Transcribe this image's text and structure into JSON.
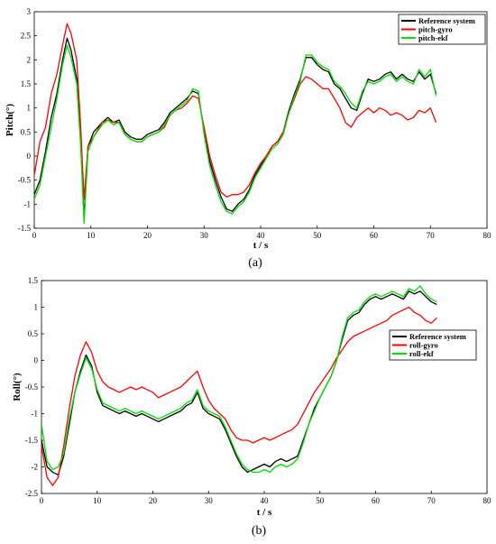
{
  "chart_data": [
    {
      "type": "line",
      "caption": "(a)",
      "xlabel": "t / s",
      "ylabel": "Pitch(°)",
      "xlim": [
        0,
        80
      ],
      "ylim": [
        -1.5,
        3
      ],
      "xticks": [
        0,
        10,
        20,
        30,
        40,
        50,
        60,
        70,
        80
      ],
      "yticks": [
        -1.5,
        -1,
        -0.5,
        0,
        0.5,
        1,
        1.5,
        2,
        2.5,
        3
      ],
      "grid": false,
      "legend_position": "top-right",
      "series": [
        {
          "name": "Reference system",
          "color": "#000000",
          "x": [
            0,
            1,
            2,
            3,
            4,
            5,
            5.8,
            6.5,
            7.5,
            8.2,
            8.8,
            9.5,
            10.5,
            12,
            13,
            14,
            15,
            16,
            17,
            18,
            19,
            20,
            21,
            22,
            23,
            24,
            25,
            26,
            27,
            28,
            29,
            30,
            31,
            32,
            33,
            34,
            35,
            36,
            37,
            38,
            39,
            40,
            41,
            42,
            43,
            44,
            45,
            46,
            47,
            48,
            49,
            50,
            51,
            52,
            53,
            54,
            55,
            56,
            57,
            58,
            59,
            60,
            61,
            62,
            63,
            64,
            65,
            66,
            67,
            68,
            69,
            70,
            71
          ],
          "values": [
            -0.8,
            -0.5,
            0.1,
            0.8,
            1.3,
            2.0,
            2.45,
            2.2,
            1.6,
            0.3,
            -1.3,
            0.2,
            0.5,
            0.7,
            0.8,
            0.7,
            0.75,
            0.5,
            0.4,
            0.35,
            0.35,
            0.45,
            0.5,
            0.55,
            0.7,
            0.9,
            1.0,
            1.1,
            1.2,
            1.35,
            1.3,
            0.5,
            -0.1,
            -0.5,
            -0.85,
            -1.1,
            -1.15,
            -1.0,
            -0.9,
            -0.7,
            -0.4,
            -0.2,
            0.0,
            0.2,
            0.3,
            0.5,
            0.95,
            1.3,
            1.6,
            2.05,
            2.05,
            1.9,
            1.8,
            1.75,
            1.5,
            1.4,
            1.2,
            1.0,
            0.95,
            1.3,
            1.6,
            1.55,
            1.6,
            1.7,
            1.75,
            1.6,
            1.7,
            1.6,
            1.55,
            1.75,
            1.6,
            1.7,
            1.3
          ]
        },
        {
          "name": "pitch-gyro",
          "color": "#ff0000",
          "x": [
            0,
            1,
            2,
            3,
            4,
            5,
            5.8,
            6.5,
            7.5,
            8.2,
            8.8,
            9.5,
            10.5,
            12,
            13,
            14,
            15,
            16,
            17,
            18,
            19,
            20,
            21,
            22,
            23,
            24,
            25,
            26,
            27,
            28,
            29,
            30,
            31,
            32,
            33,
            34,
            35,
            36,
            37,
            38,
            39,
            40,
            41,
            42,
            43,
            44,
            45,
            46,
            47,
            48,
            49,
            50,
            51,
            52,
            53,
            54,
            55,
            56,
            57,
            58,
            59,
            60,
            61,
            62,
            63,
            64,
            65,
            66,
            67,
            68,
            69,
            70,
            71
          ],
          "values": [
            -0.4,
            0.3,
            0.6,
            1.3,
            1.7,
            2.3,
            2.75,
            2.55,
            2.0,
            0.6,
            -0.9,
            0.2,
            0.4,
            0.7,
            0.75,
            0.7,
            0.7,
            0.45,
            0.35,
            0.3,
            0.3,
            0.4,
            0.45,
            0.5,
            0.6,
            0.85,
            0.95,
            1.0,
            1.1,
            1.25,
            1.2,
            0.6,
            0.0,
            -0.4,
            -0.75,
            -0.85,
            -0.8,
            -0.8,
            -0.75,
            -0.6,
            -0.35,
            -0.15,
            0.0,
            0.2,
            0.3,
            0.5,
            0.9,
            1.2,
            1.5,
            1.65,
            1.6,
            1.5,
            1.4,
            1.4,
            1.2,
            1.0,
            0.7,
            0.6,
            0.8,
            0.9,
            1.0,
            0.9,
            1.0,
            0.95,
            0.85,
            0.9,
            0.85,
            0.75,
            0.8,
            0.95,
            0.9,
            1.0,
            0.7
          ]
        },
        {
          "name": "pitch-ekf",
          "color": "#00e000",
          "x": [
            0,
            1,
            2,
            3,
            4,
            5,
            5.8,
            6.5,
            7.5,
            8.2,
            8.8,
            9.5,
            10.5,
            12,
            13,
            14,
            15,
            16,
            17,
            18,
            19,
            20,
            21,
            22,
            23,
            24,
            25,
            26,
            27,
            28,
            29,
            30,
            31,
            32,
            33,
            34,
            35,
            36,
            37,
            38,
            39,
            40,
            41,
            42,
            43,
            44,
            45,
            46,
            47,
            48,
            49,
            50,
            51,
            52,
            53,
            54,
            55,
            56,
            57,
            58,
            59,
            60,
            61,
            62,
            63,
            64,
            65,
            66,
            67,
            68,
            69,
            70,
            71
          ],
          "values": [
            -0.9,
            -0.6,
            0.0,
            0.6,
            1.2,
            1.9,
            2.3,
            2.05,
            1.5,
            0.2,
            -1.4,
            0.1,
            0.4,
            0.65,
            0.75,
            0.65,
            0.7,
            0.45,
            0.35,
            0.3,
            0.3,
            0.4,
            0.45,
            0.5,
            0.65,
            0.85,
            0.95,
            1.05,
            1.15,
            1.4,
            1.35,
            0.45,
            -0.2,
            -0.6,
            -0.95,
            -1.15,
            -1.2,
            -1.05,
            -0.95,
            -0.75,
            -0.45,
            -0.25,
            -0.05,
            0.15,
            0.25,
            0.45,
            0.9,
            1.25,
            1.55,
            2.1,
            2.1,
            1.95,
            1.85,
            1.8,
            1.55,
            1.45,
            1.3,
            1.1,
            1.0,
            1.35,
            1.55,
            1.5,
            1.55,
            1.65,
            1.7,
            1.55,
            1.65,
            1.55,
            1.5,
            1.8,
            1.65,
            1.8,
            1.25
          ]
        }
      ]
    },
    {
      "type": "line",
      "caption": "(b)",
      "xlabel": "t / s",
      "ylabel": "Roll(°)",
      "xlim": [
        0,
        80
      ],
      "ylim": [
        -2.5,
        1.5
      ],
      "xticks": [
        0,
        10,
        20,
        30,
        40,
        50,
        60,
        70,
        80
      ],
      "yticks": [
        -2.5,
        -2,
        -1.5,
        -1,
        -0.5,
        0,
        0.5,
        1,
        1.5
      ],
      "grid": false,
      "legend_position": "right",
      "series": [
        {
          "name": "Reference system",
          "color": "#000000",
          "x": [
            0,
            1,
            2,
            3,
            4,
            5,
            6,
            7,
            8,
            9,
            10,
            11,
            12,
            13,
            14,
            15,
            16,
            17,
            18,
            19,
            20,
            21,
            22,
            23,
            24,
            25,
            26,
            27,
            28,
            29,
            30,
            31,
            32,
            33,
            34,
            35,
            36,
            37,
            38,
            39,
            40,
            41,
            42,
            43,
            44,
            45,
            46,
            47,
            48,
            49,
            50,
            51,
            52,
            53,
            54,
            55,
            56,
            57,
            58,
            59,
            60,
            61,
            62,
            63,
            64,
            65,
            66,
            67,
            68,
            69,
            70,
            71
          ],
          "values": [
            -1.5,
            -2.0,
            -2.1,
            -2.15,
            -1.8,
            -1.2,
            -0.6,
            -0.2,
            0.1,
            -0.1,
            -0.6,
            -0.85,
            -0.9,
            -0.95,
            -1.0,
            -0.95,
            -1.0,
            -1.05,
            -1.0,
            -1.05,
            -1.1,
            -1.15,
            -1.1,
            -1.05,
            -1.0,
            -0.95,
            -0.85,
            -0.8,
            -0.6,
            -0.9,
            -1.0,
            -1.05,
            -1.1,
            -1.3,
            -1.55,
            -1.8,
            -2.0,
            -2.1,
            -2.05,
            -2.0,
            -1.95,
            -2.0,
            -1.9,
            -1.85,
            -1.9,
            -1.85,
            -1.8,
            -1.5,
            -1.2,
            -0.9,
            -0.7,
            -0.5,
            -0.3,
            0.0,
            0.4,
            0.75,
            0.85,
            0.9,
            1.05,
            1.15,
            1.2,
            1.15,
            1.2,
            1.25,
            1.2,
            1.15,
            1.3,
            1.25,
            1.3,
            1.2,
            1.1,
            1.05
          ]
        },
        {
          "name": "roll-gyro",
          "color": "#ff0000",
          "x": [
            0,
            1,
            2,
            3,
            4,
            5,
            6,
            7,
            8,
            9,
            10,
            11,
            12,
            13,
            14,
            15,
            16,
            17,
            18,
            19,
            20,
            21,
            22,
            23,
            24,
            25,
            26,
            27,
            28,
            29,
            30,
            31,
            32,
            33,
            34,
            35,
            36,
            37,
            38,
            39,
            40,
            41,
            42,
            43,
            44,
            45,
            46,
            47,
            48,
            49,
            50,
            51,
            52,
            53,
            54,
            55,
            56,
            57,
            58,
            59,
            60,
            61,
            62,
            63,
            64,
            65,
            66,
            67,
            68,
            69,
            70,
            71
          ],
          "values": [
            -1.6,
            -2.2,
            -2.35,
            -2.2,
            -1.6,
            -0.9,
            -0.3,
            0.1,
            0.35,
            0.15,
            -0.2,
            -0.4,
            -0.5,
            -0.55,
            -0.6,
            -0.55,
            -0.5,
            -0.55,
            -0.5,
            -0.55,
            -0.6,
            -0.7,
            -0.65,
            -0.6,
            -0.55,
            -0.5,
            -0.4,
            -0.3,
            -0.2,
            -0.5,
            -0.75,
            -0.9,
            -1.0,
            -1.1,
            -1.3,
            -1.45,
            -1.5,
            -1.5,
            -1.55,
            -1.5,
            -1.45,
            -1.5,
            -1.45,
            -1.4,
            -1.35,
            -1.3,
            -1.2,
            -1.0,
            -0.8,
            -0.6,
            -0.45,
            -0.3,
            -0.15,
            0.05,
            0.2,
            0.35,
            0.45,
            0.5,
            0.55,
            0.6,
            0.65,
            0.7,
            0.75,
            0.85,
            0.9,
            0.95,
            1.0,
            0.9,
            0.85,
            0.75,
            0.7,
            0.8
          ]
        },
        {
          "name": "roll-ekf",
          "color": "#00e000",
          "x": [
            0,
            1,
            2,
            3,
            4,
            5,
            6,
            7,
            8,
            9,
            10,
            11,
            12,
            13,
            14,
            15,
            16,
            17,
            18,
            19,
            20,
            21,
            22,
            23,
            24,
            25,
            26,
            27,
            28,
            29,
            30,
            31,
            32,
            33,
            34,
            35,
            36,
            37,
            38,
            39,
            40,
            41,
            42,
            43,
            44,
            45,
            46,
            47,
            48,
            49,
            50,
            51,
            52,
            53,
            54,
            55,
            56,
            57,
            58,
            59,
            60,
            61,
            62,
            63,
            64,
            65,
            66,
            67,
            68,
            69,
            70,
            71
          ],
          "values": [
            -1.2,
            -1.9,
            -2.05,
            -2.0,
            -1.75,
            -1.1,
            -0.6,
            -0.25,
            0.05,
            -0.15,
            -0.55,
            -0.8,
            -0.85,
            -0.9,
            -0.95,
            -0.9,
            -0.95,
            -1.0,
            -0.95,
            -1.0,
            -1.05,
            -1.1,
            -1.05,
            -1.0,
            -0.95,
            -0.9,
            -0.8,
            -0.75,
            -0.55,
            -0.85,
            -0.95,
            -1.0,
            -1.05,
            -1.25,
            -1.5,
            -1.75,
            -1.95,
            -2.05,
            -2.1,
            -2.1,
            -2.05,
            -2.1,
            -2.0,
            -1.95,
            -2.0,
            -1.95,
            -1.85,
            -1.55,
            -1.2,
            -0.95,
            -0.7,
            -0.5,
            -0.3,
            0.0,
            0.45,
            0.8,
            0.9,
            0.95,
            1.1,
            1.2,
            1.25,
            1.2,
            1.25,
            1.3,
            1.25,
            1.2,
            1.35,
            1.3,
            1.4,
            1.25,
            1.15,
            1.1
          ]
        }
      ]
    }
  ]
}
